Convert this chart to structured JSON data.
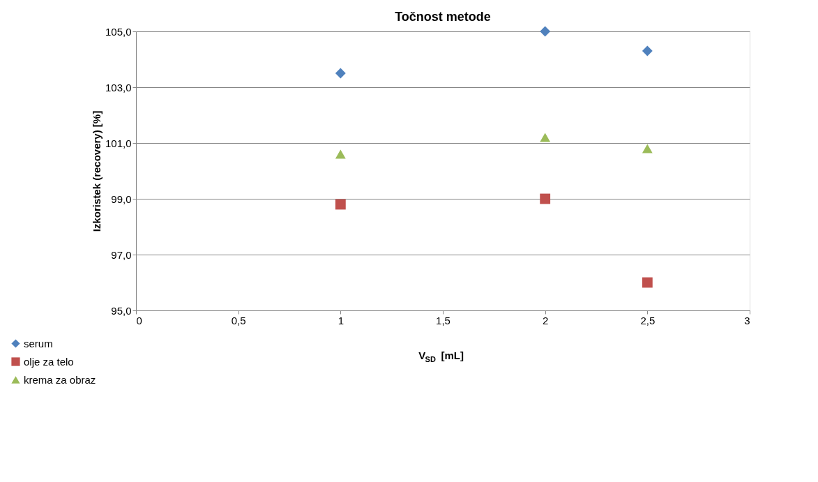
{
  "chart_data": {
    "type": "scatter",
    "title": "Točnost metode",
    "xlabel": "V$_{SD}$ [mL]",
    "ylabel": "Izkoristek (recovery) [%]",
    "x": [
      1,
      2,
      2.5
    ],
    "series": [
      {
        "name": "serum",
        "color": "#4f81bd",
        "marker": "diamond",
        "values": [
          103.5,
          105.0,
          104.3
        ]
      },
      {
        "name": "olje za telo",
        "color": "#c0504d",
        "marker": "square",
        "values": [
          98.8,
          99.0,
          96.0
        ]
      },
      {
        "name": "krema za obraz",
        "color": "#9bbb59",
        "marker": "triangle",
        "values": [
          100.6,
          101.2,
          100.8
        ]
      }
    ],
    "xlim": [
      0,
      3
    ],
    "xticks": [
      0,
      {
        "value": 0.5,
        "label": "0,5"
      },
      1,
      {
        "value": 1.5,
        "label": "1,5"
      },
      2,
      {
        "value": 2.5,
        "label": "2,5"
      },
      3
    ],
    "ylim": [
      95,
      105
    ],
    "yticks": [
      {
        "value": 95,
        "label": "95,0"
      },
      {
        "value": 97,
        "label": "97,0"
      },
      {
        "value": 99,
        "label": "99,0"
      },
      {
        "value": 101,
        "label": "101,0"
      },
      {
        "value": 103,
        "label": "103,0"
      },
      {
        "value": 105,
        "label": "105,0"
      }
    ],
    "grid": "y",
    "legend": "bottom left"
  }
}
